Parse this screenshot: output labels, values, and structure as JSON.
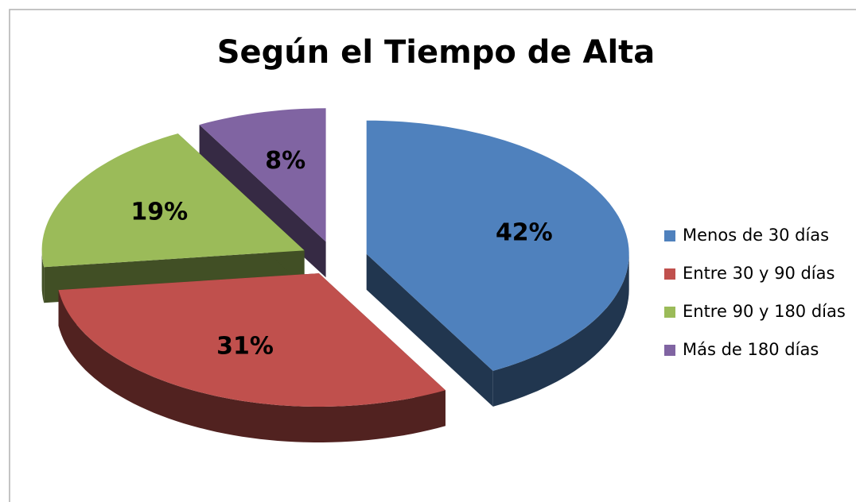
{
  "chart_data": {
    "type": "pie",
    "title": "Según el Tiempo de Alta",
    "categories": [
      "Menos de 30 días",
      "Entre 30 y 90 días",
      "Entre 90 y 180 días",
      "Más de 180 días"
    ],
    "values": [
      42,
      31,
      19,
      8
    ],
    "value_labels": [
      "42%",
      "31%",
      "19%",
      "8%"
    ],
    "colors": [
      "#4f81bd",
      "#c0504d",
      "#9bbb59",
      "#8064a2"
    ],
    "legend": "right"
  }
}
